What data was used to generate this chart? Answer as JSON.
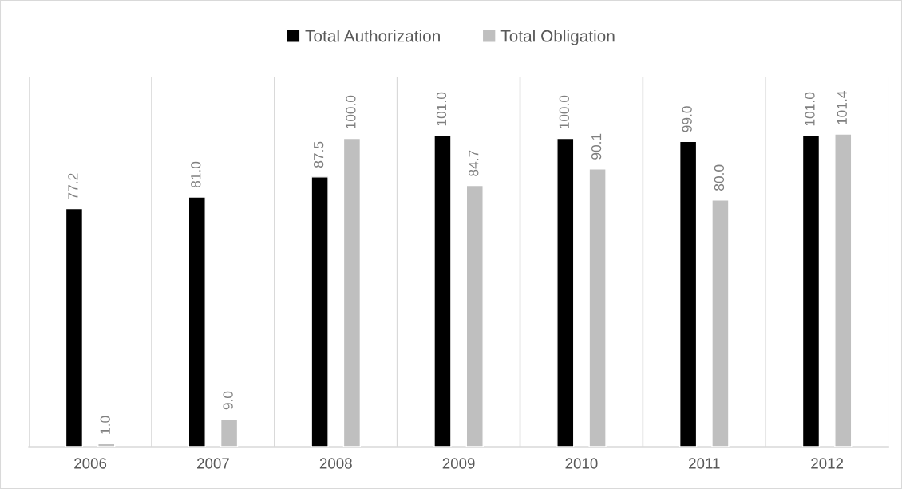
{
  "chart_data": {
    "type": "bar",
    "categories": [
      "2006",
      "2007",
      "2008",
      "2009",
      "2010",
      "2011",
      "2012"
    ],
    "series": [
      {
        "name": "Total Authorization",
        "color": "#000000",
        "values": [
          77.2,
          81.0,
          87.5,
          101.0,
          100.0,
          99.0,
          101.0
        ],
        "value_labels": [
          "77.2",
          "81.0",
          "87.5",
          "101.0",
          "100.0",
          "99.0",
          "101.0"
        ]
      },
      {
        "name": "Total Obligation",
        "color": "#bfbfbf",
        "values": [
          1.0,
          9.0,
          100.0,
          84.7,
          90.1,
          80.0,
          101.4
        ],
        "value_labels": [
          "1.0",
          "9.0",
          "100.0",
          "84.7",
          "90.1",
          "80.0",
          "101.4"
        ]
      }
    ],
    "ylim": [
      0,
      120
    ],
    "grid": "x",
    "legend": "top",
    "tick_labels": "x"
  }
}
